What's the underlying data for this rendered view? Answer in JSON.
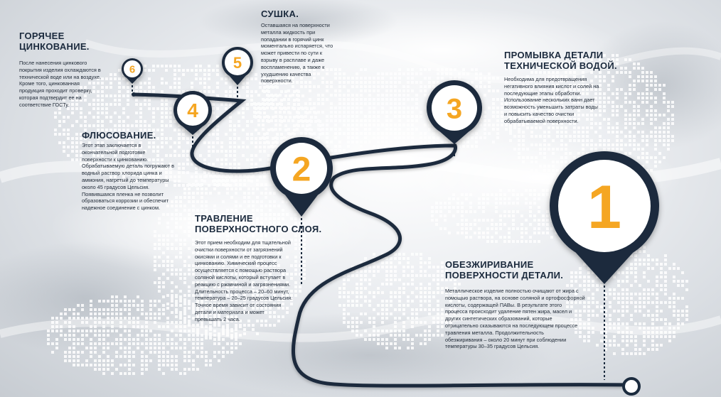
{
  "colors": {
    "navy": "#1b2b3e",
    "orange": "#f5a623",
    "white": "#ffffff"
  },
  "steps": [
    {
      "number": "1",
      "title": "ОБЕЗЖИРИВАНИЕ\nПОВЕРХНОСТИ ДЕТАЛИ.",
      "text": "Металлическое изделие полностью очищают от жира с\nпомощью раствора, на основе соляной и ортофосфорной\nкислоты, содержащей ПАВы. В результате этого\nпроцесса происходит удаление пятен жира, масел и\nдругих синтетических образований, которые\nотрицательно сказываются на последующем процессе\nтравления металла. Продолжительность\nобезжиривания – около 20 минут при соблюдении\nтемпературы 30–35 градусов Цельсия."
    },
    {
      "number": "2",
      "title": "ТРАВЛЕНИЕ\nПОВЕРХНОСТНОГО СЛОЯ.",
      "text": "Этот прием необходим для тщательной\nочистки поверхности от загрязнений\nокисями и солями и ее подготовки к\nцинкованию. Химический процесс\nосуществляется с помощью раствора\nсоляной кислоты, который вступает в\nреакцию с ржавчиной и загрязнениями.\nДлительность процесса – 20–60 минут,\nтемпература – 20–25 градусов Цельсия.\nТочное время зависит от состояния\nдетали и материала и может\nпревышать 2 часа."
    },
    {
      "number": "3",
      "title": "ПРОМЫВКА ДЕТАЛИ\nТЕХНИЧЕСКОЙ ВОДОЙ.",
      "text": "Необходима для предотвращения\nнегативного влияния кислот и солей на\nпоследующие этапы обработки.\nИспользование нескольких ванн дает\nвозможность уменьшить затраты воды\nи повысить качество очистки\nобрабатываемой поверхности."
    },
    {
      "number": "4",
      "title": "ФЛЮСОВАНИЕ.",
      "text": "Этот этап заключается в\nокончательной подготовке\nповерхности к цинкованию.\nОбрабатываемую деталь погружают в\nводный раствор хлорида цинка и\nаммония, нагретый до температуры\nоколо 45 градусов Цельсия.\nПоявившаяся пленка не позволит\nобразоваться коррозии и обеспечит\nнадежное соединение с цинком."
    },
    {
      "number": "5",
      "title": "СУШКА.",
      "text": "Оставшаяся на поверхности\nметалла жидкость при\nпопадании в горячий цинк\nмоментально испаряется, что\nможет привести по сути к\nвзрыву в расплаве и даже\nвоспламенению, а также к\nухудшению качества\nповерхности."
    },
    {
      "number": "6",
      "title": "ГОРЯЧЕЕ\nЦИНКОВАНИЕ.",
      "text": "После нанесения цинкового\nпокрытия изделия охлаждаются в\nтехнической воде или на воздухе.\nКроме того, цинкованная\nпродукция проходит проверку,\nкоторая подтвердит ее на\nсоответствие ГОСТу."
    }
  ]
}
